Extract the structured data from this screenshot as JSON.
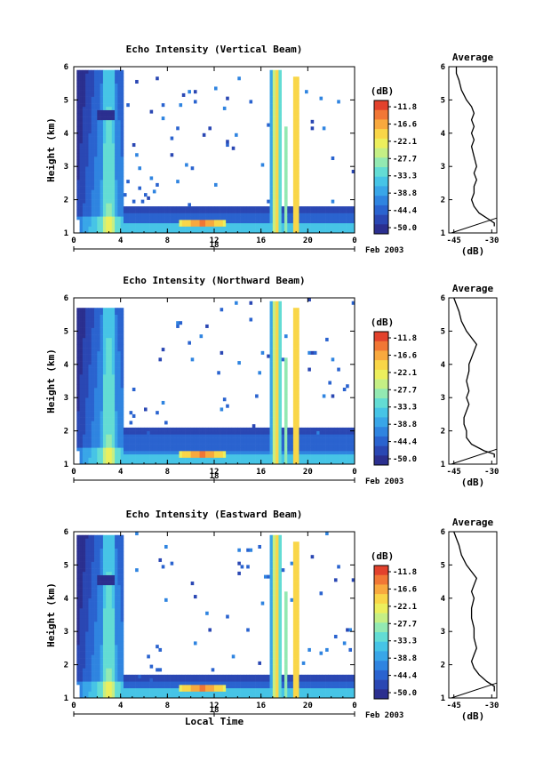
{
  "chart_data": [
    {
      "type": "heatmap",
      "title": "Echo Intensity (Vertical Beam)",
      "ylabel": "Height (km)",
      "xlabel": "",
      "x_ticks": [
        "0",
        "4",
        "8",
        "12",
        "16",
        "20",
        "0"
      ],
      "xlim": [
        0,
        24
      ],
      "ylim": [
        1,
        6
      ],
      "y_ticks": [
        "1",
        "2",
        "3",
        "4",
        "5",
        "6"
      ],
      "date_axis": {
        "day": "18",
        "month_label": "Feb 2003"
      },
      "colorbar": {
        "unit": "(dB)",
        "ticks": [
          "-11.8",
          "-16.6",
          "-22.1",
          "-27.7",
          "-33.3",
          "-38.8",
          "-44.4",
          "-50.0"
        ]
      },
      "profile": {
        "title": "Average",
        "xlabel": "(dB)",
        "x_ticks": [
          "-45",
          "-30"
        ],
        "xlim": [
          -47,
          -28
        ],
        "ylim": [
          1,
          6
        ],
        "points": [
          [
            -44,
            6.0
          ],
          [
            -44,
            5.8
          ],
          [
            -43,
            5.6
          ],
          [
            -42,
            5.3
          ],
          [
            -40,
            5.0
          ],
          [
            -38,
            4.8
          ],
          [
            -37,
            4.6
          ],
          [
            -38,
            4.4
          ],
          [
            -37,
            4.2
          ],
          [
            -38,
            4.0
          ],
          [
            -37,
            3.8
          ],
          [
            -38,
            3.6
          ],
          [
            -37,
            3.3
          ],
          [
            -36,
            3.0
          ],
          [
            -37,
            2.8
          ],
          [
            -36,
            2.6
          ],
          [
            -37,
            2.4
          ],
          [
            -37,
            2.2
          ],
          [
            -38,
            2.0
          ],
          [
            -37,
            1.8
          ],
          [
            -35,
            1.6
          ],
          [
            -31,
            1.4
          ],
          [
            -29,
            1.3
          ],
          [
            -29,
            1.2
          ]
        ],
        "surface_line": [
          [
            -46,
            1.0
          ],
          [
            -28,
            1.45
          ]
        ]
      }
    },
    {
      "type": "heatmap",
      "title": "Echo Intensity (Northward Beam)",
      "ylabel": "Height (km)",
      "xlabel": "",
      "x_ticks": [
        "0",
        "4",
        "8",
        "12",
        "16",
        "20",
        "0"
      ],
      "xlim": [
        0,
        24
      ],
      "ylim": [
        1,
        6
      ],
      "y_ticks": [
        "1",
        "2",
        "3",
        "4",
        "5",
        "6"
      ],
      "date_axis": {
        "day": "18",
        "month_label": "Feb 2003"
      },
      "colorbar": {
        "unit": "(dB)",
        "ticks": [
          "-11.8",
          "-16.6",
          "-22.1",
          "-27.7",
          "-33.3",
          "-38.8",
          "-44.4",
          "-50.0"
        ]
      },
      "profile": {
        "title": "Average",
        "xlabel": "(dB)",
        "x_ticks": [
          "-45",
          "-30"
        ],
        "xlim": [
          -47,
          -28
        ],
        "ylim": [
          1,
          6
        ],
        "points": [
          [
            -45,
            6.0
          ],
          [
            -44,
            5.8
          ],
          [
            -43,
            5.6
          ],
          [
            -42,
            5.3
          ],
          [
            -40,
            5.0
          ],
          [
            -38,
            4.8
          ],
          [
            -36,
            4.6
          ],
          [
            -37,
            4.4
          ],
          [
            -38,
            4.2
          ],
          [
            -39,
            4.0
          ],
          [
            -39,
            3.8
          ],
          [
            -40,
            3.5
          ],
          [
            -39,
            3.2
          ],
          [
            -40,
            3.0
          ],
          [
            -39,
            2.8
          ],
          [
            -40,
            2.6
          ],
          [
            -41,
            2.4
          ],
          [
            -41,
            2.2
          ],
          [
            -40,
            2.0
          ],
          [
            -40,
            1.8
          ],
          [
            -38,
            1.6
          ],
          [
            -33,
            1.4
          ],
          [
            -29,
            1.3
          ],
          [
            -29,
            1.2
          ]
        ],
        "surface_line": [
          [
            -46,
            1.0
          ],
          [
            -28,
            1.45
          ]
        ]
      }
    },
    {
      "type": "heatmap",
      "title": "Echo Intensity (Eastward Beam)",
      "ylabel": "Height (km)",
      "xlabel": "Local Time",
      "x_ticks": [
        "0",
        "4",
        "8",
        "12",
        "16",
        "20",
        "0"
      ],
      "xlim": [
        0,
        24
      ],
      "ylim": [
        1,
        6
      ],
      "y_ticks": [
        "1",
        "2",
        "3",
        "4",
        "5",
        "6"
      ],
      "date_axis": {
        "day": "18",
        "month_label": "Feb 2003"
      },
      "colorbar": {
        "unit": "(dB)",
        "ticks": [
          "-11.8",
          "-16.6",
          "-22.1",
          "-27.7",
          "-33.3",
          "-38.8",
          "-44.4",
          "-50.0"
        ]
      },
      "profile": {
        "title": "Average",
        "xlabel": "(dB)",
        "x_ticks": [
          "-45",
          "-30"
        ],
        "xlim": [
          -47,
          -28
        ],
        "ylim": [
          1,
          6
        ],
        "points": [
          [
            -45,
            6.0
          ],
          [
            -44,
            5.8
          ],
          [
            -43,
            5.6
          ],
          [
            -42,
            5.3
          ],
          [
            -40,
            5.0
          ],
          [
            -38,
            4.8
          ],
          [
            -36,
            4.6
          ],
          [
            -37,
            4.4
          ],
          [
            -38,
            4.2
          ],
          [
            -37,
            4.0
          ],
          [
            -38,
            3.7
          ],
          [
            -38,
            3.4
          ],
          [
            -37,
            3.1
          ],
          [
            -37,
            2.8
          ],
          [
            -36,
            2.5
          ],
          [
            -37,
            2.3
          ],
          [
            -38,
            2.1
          ],
          [
            -37,
            1.9
          ],
          [
            -35,
            1.7
          ],
          [
            -32,
            1.5
          ],
          [
            -29,
            1.35
          ],
          [
            -29,
            1.2
          ]
        ],
        "surface_line": [
          [
            -46,
            1.0
          ],
          [
            -28,
            1.45
          ]
        ]
      }
    }
  ]
}
